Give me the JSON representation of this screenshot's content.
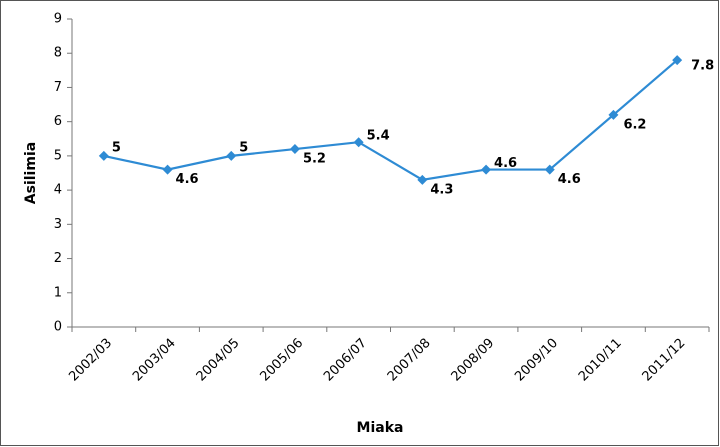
{
  "chart_data": {
    "type": "line",
    "x_label": "Miaka",
    "y_label": "Asilimia",
    "categories": [
      "2002/03",
      "2003/04",
      "2004/05",
      "2005/06",
      "2006/07",
      "2007/08",
      "2008/09",
      "2009/10",
      "2010/11",
      "2011/12"
    ],
    "series": [
      {
        "name": "Asilimia",
        "color": "#2e8bd4",
        "values": [
          5,
          4.6,
          5,
          5.2,
          5.4,
          4.3,
          4.6,
          4.6,
          6.2,
          7.8
        ]
      }
    ],
    "ylim": [
      0,
      9
    ],
    "yticks": [
      0,
      1,
      2,
      3,
      4,
      5,
      6,
      7,
      8,
      9
    ],
    "grid": false,
    "legend": false
  }
}
